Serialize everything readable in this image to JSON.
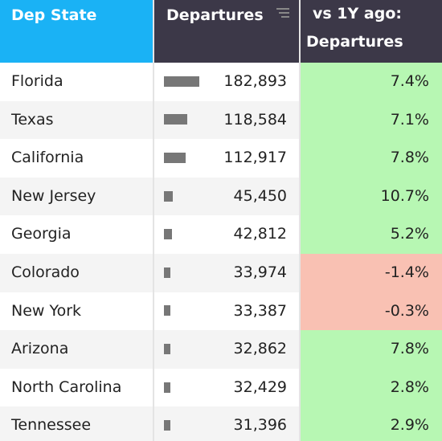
{
  "header": {
    "state": "Dep State",
    "departures": "Departures",
    "change_line1": "vs 1Y ago:",
    "change_line2": "Departures"
  },
  "table": {
    "rows": [
      {
        "state": "Florida",
        "departures": 182893,
        "departures_label": "182,893",
        "change": 7.4,
        "change_label": "7.4%"
      },
      {
        "state": "Texas",
        "departures": 118584,
        "departures_label": "118,584",
        "change": 7.1,
        "change_label": "7.1%"
      },
      {
        "state": "California",
        "departures": 112917,
        "departures_label": "112,917",
        "change": 7.8,
        "change_label": "7.8%"
      },
      {
        "state": "New Jersey",
        "departures": 45450,
        "departures_label": "45,450",
        "change": 10.7,
        "change_label": "10.7%"
      },
      {
        "state": "Georgia",
        "departures": 42812,
        "departures_label": "42,812",
        "change": 5.2,
        "change_label": "5.2%"
      },
      {
        "state": "Colorado",
        "departures": 33974,
        "departures_label": "33,974",
        "change": -1.4,
        "change_label": "-1.4%"
      },
      {
        "state": "New York",
        "departures": 33387,
        "departures_label": "33,387",
        "change": -0.3,
        "change_label": "-0.3%"
      },
      {
        "state": "Arizona",
        "departures": 32862,
        "departures_label": "32,862",
        "change": 7.8,
        "change_label": "7.8%"
      },
      {
        "state": "North Carolina",
        "departures": 32429,
        "departures_label": "32,429",
        "change": 2.8,
        "change_label": "2.8%"
      },
      {
        "state": "Tennessee",
        "departures": 31396,
        "departures_label": "31,396",
        "change": 2.9,
        "change_label": "2.9%"
      }
    ]
  }
}
